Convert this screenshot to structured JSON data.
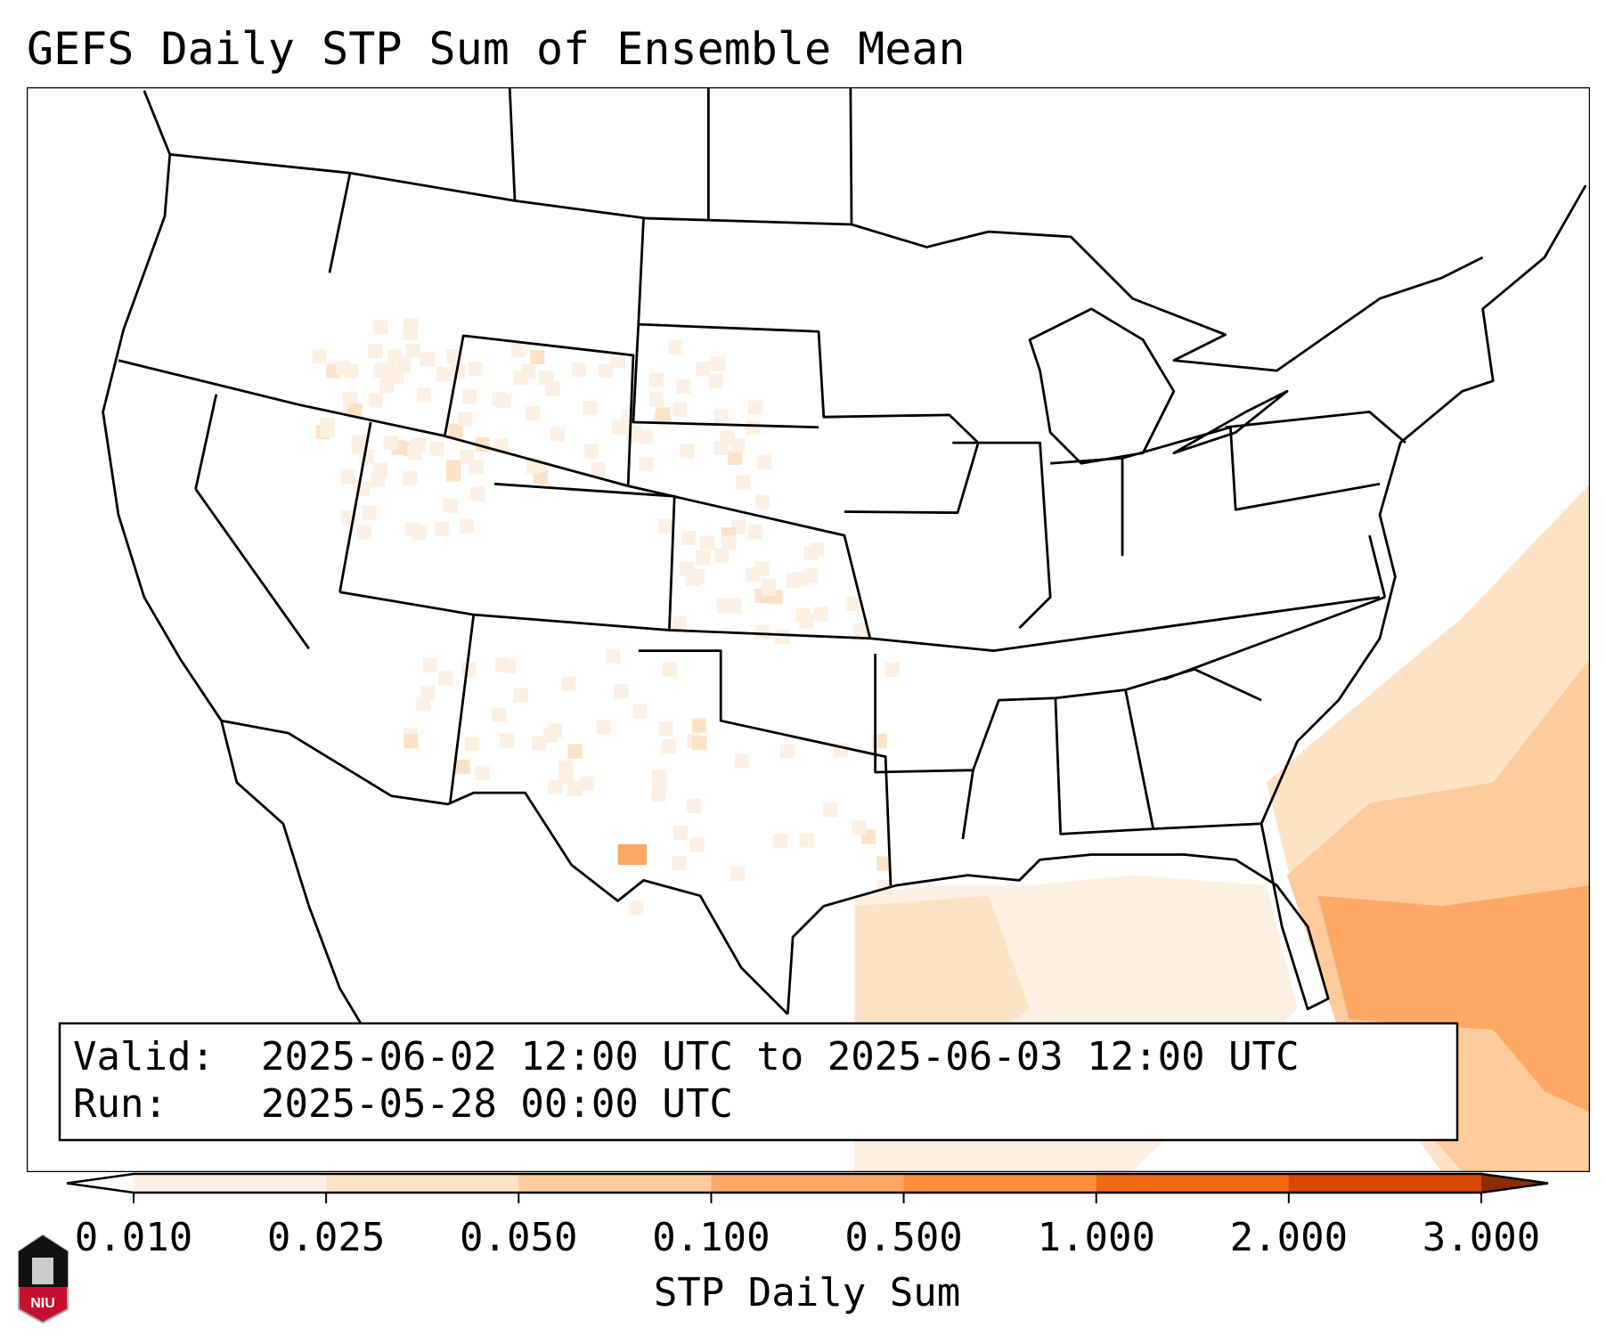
{
  "chart_data": {
    "type": "heatmap",
    "title": "GEFS Daily STP Sum of Ensemble Mean",
    "colorbar": {
      "label": "STP Daily Sum",
      "ticks": [
        "0.010",
        "0.025",
        "0.050",
        "0.100",
        "0.500",
        "1.000",
        "2.000",
        "3.000"
      ],
      "colors": [
        "#fdf0e3",
        "#fde2c6",
        "#fdcb9c",
        "#fda864",
        "#fd8d3c",
        "#f16913",
        "#d94801"
      ],
      "extend_low_color": "#ffffff",
      "extend_high_color": "#8c2d04",
      "extend": "both"
    },
    "regions": [
      {
        "name": "Western Atlantic / Bahamas",
        "level": "0.100-0.500"
      },
      {
        "name": "Southeast Atlantic coast",
        "level": "0.050-0.100"
      },
      {
        "name": "Gulf of Mexico",
        "level": "0.025-0.050"
      },
      {
        "name": "High Plains / Rockies",
        "level": "0.010-0.025"
      },
      {
        "name": "West Texas",
        "level": "0.050-0.100"
      }
    ]
  },
  "info": {
    "valid_label": "Valid:",
    "valid_value": "2025-06-02 12:00 UTC to 2025-06-03 12:00 UTC",
    "run_label": "Run:",
    "run_value": "2025-05-28 00:00 UTC"
  },
  "logo": {
    "text": "NIU"
  }
}
